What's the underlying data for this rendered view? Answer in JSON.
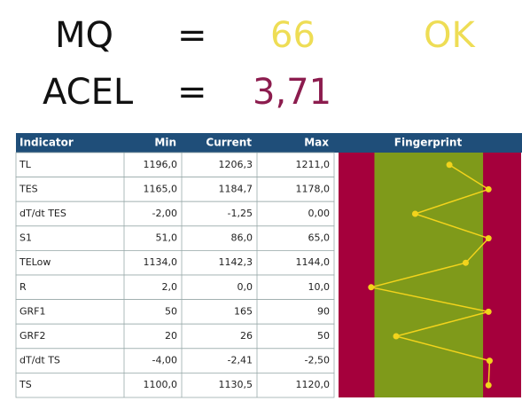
{
  "header": {
    "lines": [
      {
        "label": "MQ",
        "eq": "=",
        "value": "66",
        "status": "OK",
        "value_color": "#eedd55",
        "status_color": "#eedd55"
      },
      {
        "label": "ACEL",
        "eq": "=",
        "value": "3,71",
        "value_color": "#8c1c4e"
      }
    ]
  },
  "table": {
    "columns": [
      "Indicator",
      "Min",
      "Current",
      "Max",
      "Fingerprint"
    ],
    "rows": [
      [
        "TL",
        "1196,0",
        "1206,3",
        "1211,0"
      ],
      [
        "TES",
        "1165,0",
        "1184,7",
        "1178,0"
      ],
      [
        "dT/dt TES",
        "-2,00",
        "-1,25",
        "0,00"
      ],
      [
        "S1",
        "51,0",
        "86,0",
        "65,0"
      ],
      [
        "TELow",
        "1134,0",
        "1142,3",
        "1144,0"
      ],
      [
        "R",
        "2,0",
        "0,0",
        "10,0"
      ],
      [
        "GRF1",
        "50",
        "165",
        "90"
      ],
      [
        "GRF2",
        "20",
        "26",
        "50"
      ],
      [
        "dT/dt TS",
        "-4,00",
        "-2,41",
        "-2,50"
      ],
      [
        "TS",
        "1100,0",
        "1130,5",
        "1120,0"
      ]
    ]
  },
  "chart_data": {
    "type": "fingerprint",
    "xlim": [
      -0.33,
      1.35
    ],
    "band": [
      0,
      1
    ],
    "band_color": "#7f9a1a",
    "outer_color": "#a5003c",
    "color": "#f2d31c",
    "values": [
      0.69,
      1.05,
      0.375,
      1.05,
      0.84,
      -0.03,
      1.05,
      0.2,
      1.06,
      1.05
    ]
  }
}
